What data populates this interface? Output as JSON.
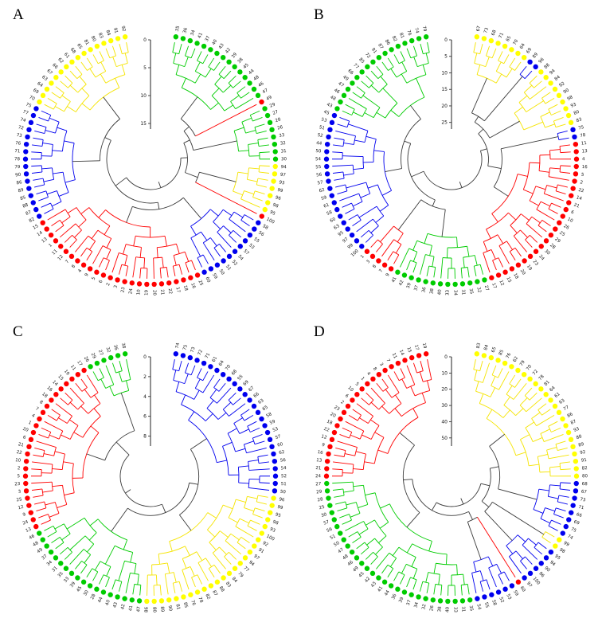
{
  "figure": {
    "background": "#ffffff",
    "description": "Four circular dendrograms with colored cluster branches and colored leaf dots numbered 1-100"
  },
  "chart_data": {
    "type": "dendrogram",
    "layout": "circular fan dendrograms, 2x2 panel grid, radial height scale at top of each circle",
    "colors": {
      "red": "#ff0000",
      "green": "#00cc00",
      "blue": "#0000ee",
      "yellow": "#f5e400",
      "ink": "#3a3a3a",
      "dot_yellow": "#ffff00"
    },
    "panels": [
      {
        "label": "A",
        "axis_ticks": [
          0,
          5,
          10,
          15
        ],
        "axis_max": 16,
        "segments": [
          {
            "color": "green",
            "leaves": [
              35,
              36,
              34,
              41,
              37,
              40,
              43,
              42,
              39,
              38,
              45,
              44,
              48,
              46,
              47
            ]
          },
          {
            "color": "red",
            "leaves": [
              49
            ]
          },
          {
            "color": "green",
            "leaves": [
              29,
              27,
              28,
              26,
              33,
              32,
              31,
              30
            ]
          },
          {
            "color": "yellow",
            "leaves": [
              94,
              97,
              93,
              99,
              96,
              98,
              95
            ]
          },
          {
            "color": "red",
            "leaves": [
              100
            ]
          },
          {
            "color": "blue",
            "leaves": [
              58,
              56,
              55,
              53,
              57,
              54,
              52,
              51,
              50,
              59,
              60
            ]
          },
          {
            "color": "red",
            "leaves": [
              25,
              16,
              18,
              17,
              22,
              21,
              20,
              19,
              10,
              24,
              23,
              3,
              2,
              6,
              5,
              9,
              4,
              8,
              7,
              12,
              11,
              1,
              13,
              14,
              15
            ]
          },
          {
            "color": "blue",
            "leaves": [
              82,
              87,
              88,
              85,
              89,
              86,
              90,
              79,
              78,
              71,
              76,
              73,
              72,
              74,
              77,
              75
            ]
          },
          {
            "color": "yellow",
            "leaves": [
              70,
              69,
              64,
              63,
              67,
              66,
              62,
              61,
              68,
              65,
              81,
              80,
              83,
              84,
              91,
              92
            ]
          }
        ]
      },
      {
        "label": "B",
        "axis_ticks": [
          0,
          5,
          10,
          15,
          20,
          25
        ],
        "axis_max": 27,
        "segments": [
          {
            "color": "yellow",
            "leaves": [
              67,
              73,
              68,
              71,
              65,
              70,
              64,
              69
            ]
          },
          {
            "color": "blue",
            "leaves": [
              89,
              96
            ]
          },
          {
            "color": "yellow",
            "leaves": [
              88,
              94,
              84,
              92,
              90,
              98,
              93,
              80,
              83
            ]
          },
          {
            "color": "blue",
            "leaves": [
              75,
              78
            ]
          },
          {
            "color": "red",
            "leaves": [
              11,
              13,
              4,
              16,
              5,
              2,
              22,
              14,
              21,
              6,
              10,
              26,
              25,
              29,
              28,
              30,
              24,
              23,
              19,
              20,
              18,
              15,
              12,
              17
            ]
          },
          {
            "color": "green",
            "leaves": [
              27,
              32,
              35,
              31,
              34,
              33,
              40,
              38,
              36,
              37,
              39,
              42,
              41
            ]
          },
          {
            "color": "red",
            "leaves": [
              9,
              7,
              8,
              3,
              1
            ]
          },
          {
            "color": "blue",
            "leaves": [
              100,
              99,
              97,
              95,
              63,
              60,
              58,
              61,
              59,
              62,
              57,
              56,
              55,
              54,
              50,
              44,
              52,
              51,
              53,
              45
            ]
          },
          {
            "color": "green",
            "leaves": [
              43,
              48,
              46,
              47,
              49,
              66,
              77,
              85,
              72,
              91,
              87,
              86,
              82,
              81,
              76,
              74,
              79
            ]
          }
        ]
      },
      {
        "label": "C",
        "axis_ticks": [
          0,
          2,
          4,
          6,
          8
        ],
        "axis_max": 9,
        "segments": [
          {
            "color": "blue",
            "leaves": [
              74,
              75,
              73,
              72,
              71,
              61,
              64,
              70,
              68,
              55,
              69,
              67,
              66,
              63,
              65,
              58,
              59,
              53,
              57,
              60,
              62,
              56,
              54,
              52,
              51,
              50
            ]
          },
          {
            "color": "yellow",
            "leaves": [
              96,
              99,
              95,
              98,
              93,
              100,
              92,
              91,
              97,
              94,
              77,
              79,
              84,
              83,
              88,
              87,
              82,
              78,
              76,
              85,
              81,
              90,
              89,
              80,
              86
            ]
          },
          {
            "color": "green",
            "leaves": [
              47,
              41,
              42,
              43,
              40,
              44,
              28,
              30,
              45,
              39,
              33,
              35,
              31,
              34,
              37,
              49,
              48,
              46
            ]
          },
          {
            "color": "red",
            "leaves": [
              13,
              24,
              9,
              12,
              25,
              3,
              23,
              5,
              2,
              10,
              22,
              21,
              6,
              20,
              1,
              4,
              7,
              8,
              18,
              16,
              14,
              15,
              19,
              11,
              17
            ]
          },
          {
            "color": "green",
            "leaves": [
              26,
              29,
              27,
              32,
              36,
              38
            ]
          }
        ]
      },
      {
        "label": "D",
        "axis_ticks": [
          0,
          10,
          20,
          30,
          40,
          50
        ],
        "axis_max": 55,
        "segments": [
          {
            "color": "yellow",
            "leaves": [
              83,
              84,
              65,
              85,
              76,
              62,
              79,
              70,
              72,
              78,
              81,
              64,
              61,
              63,
              77,
              86,
              87,
              93,
              88,
              89,
              92,
              91,
              82,
              80
            ]
          },
          {
            "color": "blue",
            "leaves": [
              68,
              67,
              73,
              71,
              66,
              69,
              75,
              74
            ]
          },
          {
            "color": "yellow",
            "leaves": [
              99,
              98
            ]
          },
          {
            "color": "blue",
            "leaves": [
              95,
              94,
              90,
              96,
              100,
              97
            ]
          },
          {
            "color": "red",
            "leaves": [
              60
            ]
          },
          {
            "color": "blue",
            "leaves": [
              59,
              53,
              52,
              58,
              55,
              54
            ]
          },
          {
            "color": "green",
            "leaves": [
              35,
              31,
              33,
              40,
              38,
              26,
              32,
              34,
              37,
              39,
              36,
              44,
              41,
              43,
              42,
              45,
              49,
              46,
              48,
              47,
              50,
              51,
              56,
              57,
              30,
              25,
              28,
              29,
              27
            ]
          },
          {
            "color": "red",
            "leaves": [
              24,
              21,
              13,
              16,
              9,
              12,
              22,
              18,
              20,
              23,
              2,
              6,
              10,
              5,
              1,
              4,
              8,
              3,
              7,
              11,
              14,
              15,
              17,
              19
            ]
          }
        ]
      }
    ]
  }
}
